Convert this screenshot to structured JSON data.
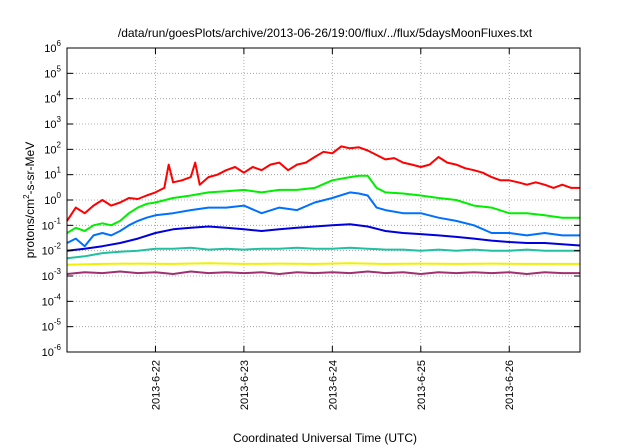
{
  "chart_data": {
    "type": "line",
    "title": "/data/run/goesPlots/archive/2013-06-26/19:00/flux/../flux/5daysMoonFluxes.txt",
    "xlabel": "Coordinated Universal Time (UTC)",
    "ylabel": {
      "base": "protons/cm",
      "sup": "2",
      "rest": "-s-sr-MeV"
    },
    "yscale": "log",
    "ylim_exp": [
      -6,
      6
    ],
    "ytick_labels": [
      {
        "base": "10",
        "exp": "-6"
      },
      {
        "base": "10",
        "exp": "-5"
      },
      {
        "base": "10",
        "exp": "-4"
      },
      {
        "base": "10",
        "exp": "-3"
      },
      {
        "base": "10",
        "exp": "-2"
      },
      {
        "base": "10",
        "exp": "-1"
      },
      {
        "base": "10",
        "exp": "0"
      },
      {
        "base": "10",
        "exp": "1"
      },
      {
        "base": "10",
        "exp": "2"
      },
      {
        "base": "10",
        "exp": "3"
      },
      {
        "base": "10",
        "exp": "4"
      },
      {
        "base": "10",
        "exp": "5"
      },
      {
        "base": "10",
        "exp": "6"
      }
    ],
    "xlim_days": [
      21.0,
      26.8
    ],
    "xtick_labels": [
      "2013-6-22",
      "2013-6-23",
      "2013-6-24",
      "2013-6-25",
      "2013-6-26"
    ],
    "xtick_days": [
      22,
      23,
      24,
      25,
      26
    ],
    "grid": true,
    "legend": "none",
    "series": [
      {
        "color": "#ff0000",
        "x": [
          21.0,
          21.1,
          21.2,
          21.3,
          21.4,
          21.5,
          21.6,
          21.7,
          21.8,
          21.9,
          22.0,
          22.1,
          22.15,
          22.2,
          22.3,
          22.4,
          22.45,
          22.5,
          22.6,
          22.7,
          22.8,
          22.9,
          23.0,
          23.1,
          23.2,
          23.3,
          23.4,
          23.5,
          23.6,
          23.7,
          23.8,
          23.9,
          24.0,
          24.1,
          24.2,
          24.3,
          24.4,
          24.5,
          24.6,
          24.7,
          24.8,
          24.9,
          25.0,
          25.1,
          25.2,
          25.3,
          25.4,
          25.5,
          25.6,
          25.7,
          25.8,
          25.9,
          26.0,
          26.1,
          26.2,
          26.3,
          26.4,
          26.5,
          26.6,
          26.7,
          26.8
        ],
        "y": [
          0.15,
          0.5,
          0.3,
          0.6,
          1,
          0.6,
          0.8,
          1.2,
          1.1,
          1.5,
          2,
          3,
          25,
          5,
          6,
          8,
          30,
          4,
          8,
          10,
          15,
          20,
          12,
          20,
          15,
          25,
          30,
          15,
          25,
          30,
          50,
          80,
          70,
          130,
          110,
          120,
          90,
          60,
          40,
          45,
          30,
          25,
          20,
          25,
          50,
          30,
          25,
          18,
          15,
          12,
          8,
          6,
          6,
          5,
          4,
          5,
          4,
          3,
          4,
          3,
          3
        ]
      },
      {
        "color": "#00ee00",
        "x": [
          21.0,
          21.1,
          21.2,
          21.3,
          21.4,
          21.5,
          21.6,
          21.7,
          21.8,
          21.9,
          22.0,
          22.2,
          22.4,
          22.6,
          22.8,
          23.0,
          23.2,
          23.4,
          23.6,
          23.8,
          24.0,
          24.2,
          24.3,
          24.4,
          24.5,
          24.6,
          24.8,
          25.0,
          25.2,
          25.4,
          25.6,
          25.8,
          26.0,
          26.2,
          26.4,
          26.6,
          26.8
        ],
        "y": [
          0.05,
          0.08,
          0.06,
          0.1,
          0.12,
          0.1,
          0.15,
          0.3,
          0.5,
          0.7,
          0.8,
          1.2,
          1.5,
          2,
          2.2,
          2.5,
          2,
          2.5,
          2.5,
          3,
          6,
          8,
          9,
          9,
          3,
          2,
          1.8,
          1.5,
          1.2,
          1,
          0.6,
          0.5,
          0.3,
          0.3,
          0.25,
          0.2,
          0.2
        ]
      },
      {
        "color": "#0070ff",
        "x": [
          21.0,
          21.1,
          21.2,
          21.3,
          21.4,
          21.5,
          21.6,
          21.7,
          21.8,
          21.9,
          22.0,
          22.2,
          22.4,
          22.6,
          22.8,
          23.0,
          23.2,
          23.4,
          23.6,
          23.8,
          24.0,
          24.2,
          24.3,
          24.4,
          24.5,
          24.6,
          24.8,
          25.0,
          25.2,
          25.4,
          25.6,
          25.8,
          26.0,
          26.2,
          26.4,
          26.6,
          26.8
        ],
        "y": [
          0.02,
          0.03,
          0.015,
          0.04,
          0.05,
          0.04,
          0.06,
          0.1,
          0.15,
          0.2,
          0.25,
          0.3,
          0.4,
          0.5,
          0.5,
          0.6,
          0.3,
          0.5,
          0.4,
          0.8,
          1.2,
          2,
          1.8,
          1.5,
          0.5,
          0.4,
          0.3,
          0.3,
          0.2,
          0.15,
          0.1,
          0.05,
          0.05,
          0.04,
          0.05,
          0.04,
          0.04
        ]
      },
      {
        "color": "#0000dd",
        "x": [
          21.0,
          21.2,
          21.4,
          21.6,
          21.8,
          22.0,
          22.2,
          22.4,
          22.6,
          22.8,
          23.0,
          23.2,
          23.4,
          23.6,
          23.8,
          24.0,
          24.2,
          24.4,
          24.6,
          24.8,
          25.0,
          25.2,
          25.4,
          25.6,
          25.8,
          26.0,
          26.2,
          26.4,
          26.6,
          26.8
        ],
        "y": [
          0.01,
          0.012,
          0.015,
          0.02,
          0.03,
          0.05,
          0.07,
          0.08,
          0.09,
          0.08,
          0.07,
          0.06,
          0.07,
          0.08,
          0.09,
          0.1,
          0.11,
          0.09,
          0.06,
          0.05,
          0.045,
          0.04,
          0.035,
          0.03,
          0.025,
          0.022,
          0.02,
          0.02,
          0.018,
          0.016
        ]
      },
      {
        "color": "#20c0a0",
        "x": [
          21.0,
          21.2,
          21.4,
          21.6,
          21.8,
          22.0,
          22.2,
          22.4,
          22.6,
          22.8,
          23.0,
          23.2,
          23.4,
          23.6,
          23.8,
          24.0,
          24.2,
          24.4,
          24.6,
          24.8,
          25.0,
          25.2,
          25.4,
          25.6,
          25.8,
          26.0,
          26.2,
          26.4,
          26.6,
          26.8
        ],
        "y": [
          0.005,
          0.006,
          0.008,
          0.009,
          0.01,
          0.012,
          0.012,
          0.013,
          0.011,
          0.012,
          0.011,
          0.012,
          0.012,
          0.013,
          0.012,
          0.012,
          0.013,
          0.012,
          0.011,
          0.011,
          0.01,
          0.011,
          0.01,
          0.011,
          0.01,
          0.01,
          0.011,
          0.01,
          0.01,
          0.01
        ]
      },
      {
        "color": "#f0f000",
        "x": [
          21.0,
          21.4,
          21.8,
          22.2,
          22.6,
          23.0,
          23.4,
          23.8,
          24.2,
          24.6,
          25.0,
          25.4,
          25.8,
          26.2,
          26.8
        ],
        "y": [
          0.0028,
          0.003,
          0.0031,
          0.003,
          0.0032,
          0.003,
          0.0031,
          0.003,
          0.0032,
          0.003,
          0.0031,
          0.003,
          0.0031,
          0.003,
          0.003
        ]
      },
      {
        "color": "#a03070",
        "x": [
          21.0,
          21.2,
          21.4,
          21.6,
          21.8,
          22.0,
          22.2,
          22.4,
          22.6,
          22.8,
          23.0,
          23.2,
          23.4,
          23.6,
          23.8,
          24.0,
          24.2,
          24.4,
          24.6,
          24.8,
          25.0,
          25.2,
          25.4,
          25.6,
          25.8,
          26.0,
          26.2,
          26.4,
          26.6,
          26.8
        ],
        "y": [
          0.0012,
          0.0014,
          0.0013,
          0.0015,
          0.0013,
          0.0014,
          0.0012,
          0.0015,
          0.0013,
          0.0014,
          0.0013,
          0.0014,
          0.0012,
          0.0014,
          0.0013,
          0.0014,
          0.0013,
          0.0015,
          0.0013,
          0.0014,
          0.0012,
          0.0014,
          0.0013,
          0.0014,
          0.0013,
          0.0014,
          0.0012,
          0.0014,
          0.0013,
          0.0013
        ]
      }
    ]
  }
}
